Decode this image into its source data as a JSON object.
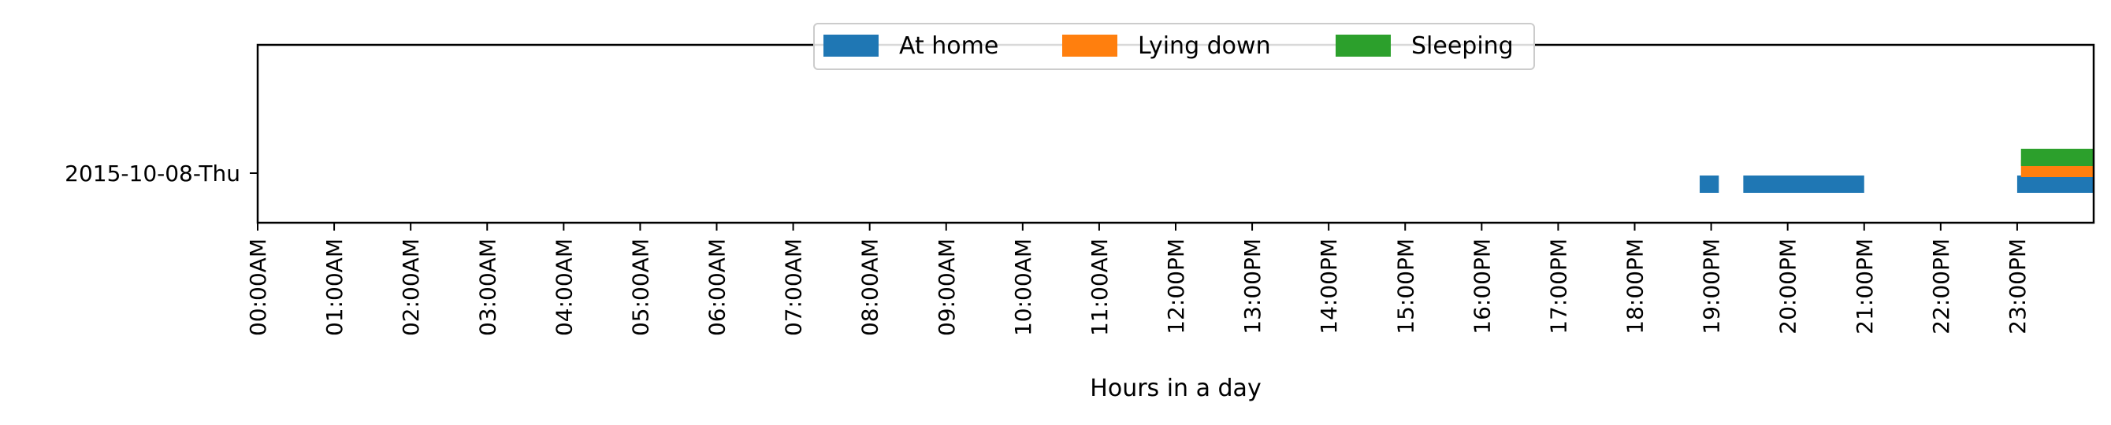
{
  "chart_data": {
    "type": "timeline",
    "xlabel": "Hours in a day",
    "xlim": [
      0,
      24
    ],
    "x_ticks": [
      {
        "hour": 0,
        "label": "00:00AM"
      },
      {
        "hour": 1,
        "label": "01:00AM"
      },
      {
        "hour": 2,
        "label": "02:00AM"
      },
      {
        "hour": 3,
        "label": "03:00AM"
      },
      {
        "hour": 4,
        "label": "04:00AM"
      },
      {
        "hour": 5,
        "label": "05:00AM"
      },
      {
        "hour": 6,
        "label": "06:00AM"
      },
      {
        "hour": 7,
        "label": "07:00AM"
      },
      {
        "hour": 8,
        "label": "08:00AM"
      },
      {
        "hour": 9,
        "label": "09:00AM"
      },
      {
        "hour": 10,
        "label": "10:00AM"
      },
      {
        "hour": 11,
        "label": "11:00AM"
      },
      {
        "hour": 12,
        "label": "12:00PM"
      },
      {
        "hour": 13,
        "label": "13:00PM"
      },
      {
        "hour": 14,
        "label": "14:00PM"
      },
      {
        "hour": 15,
        "label": "15:00PM"
      },
      {
        "hour": 16,
        "label": "16:00PM"
      },
      {
        "hour": 17,
        "label": "17:00PM"
      },
      {
        "hour": 18,
        "label": "18:00PM"
      },
      {
        "hour": 19,
        "label": "19:00PM"
      },
      {
        "hour": 20,
        "label": "20:00PM"
      },
      {
        "hour": 21,
        "label": "21:00PM"
      },
      {
        "hour": 22,
        "label": "22:00PM"
      },
      {
        "hour": 23,
        "label": "23:00PM"
      }
    ],
    "categories": [
      "2015-10-08-Thu"
    ],
    "legend": {
      "placement": "top-center",
      "columns": 3
    },
    "grid": false,
    "series": [
      {
        "name": "At home",
        "color": "#1f77b4",
        "intervals": [
          {
            "day": "2015-10-08-Thu",
            "start": 18.85,
            "end": 19.1
          },
          {
            "day": "2015-10-08-Thu",
            "start": 19.42,
            "end": 21.0
          },
          {
            "day": "2015-10-08-Thu",
            "start": 23.0,
            "end": 24.0
          }
        ]
      },
      {
        "name": "Lying down",
        "color": "#ff7f0e",
        "intervals": [
          {
            "day": "2015-10-08-Thu",
            "start": 23.05,
            "end": 24.0
          }
        ]
      },
      {
        "name": "Sleeping",
        "color": "#2ca02c",
        "intervals": [
          {
            "day": "2015-10-08-Thu",
            "start": 23.05,
            "end": 24.0
          }
        ]
      }
    ]
  }
}
